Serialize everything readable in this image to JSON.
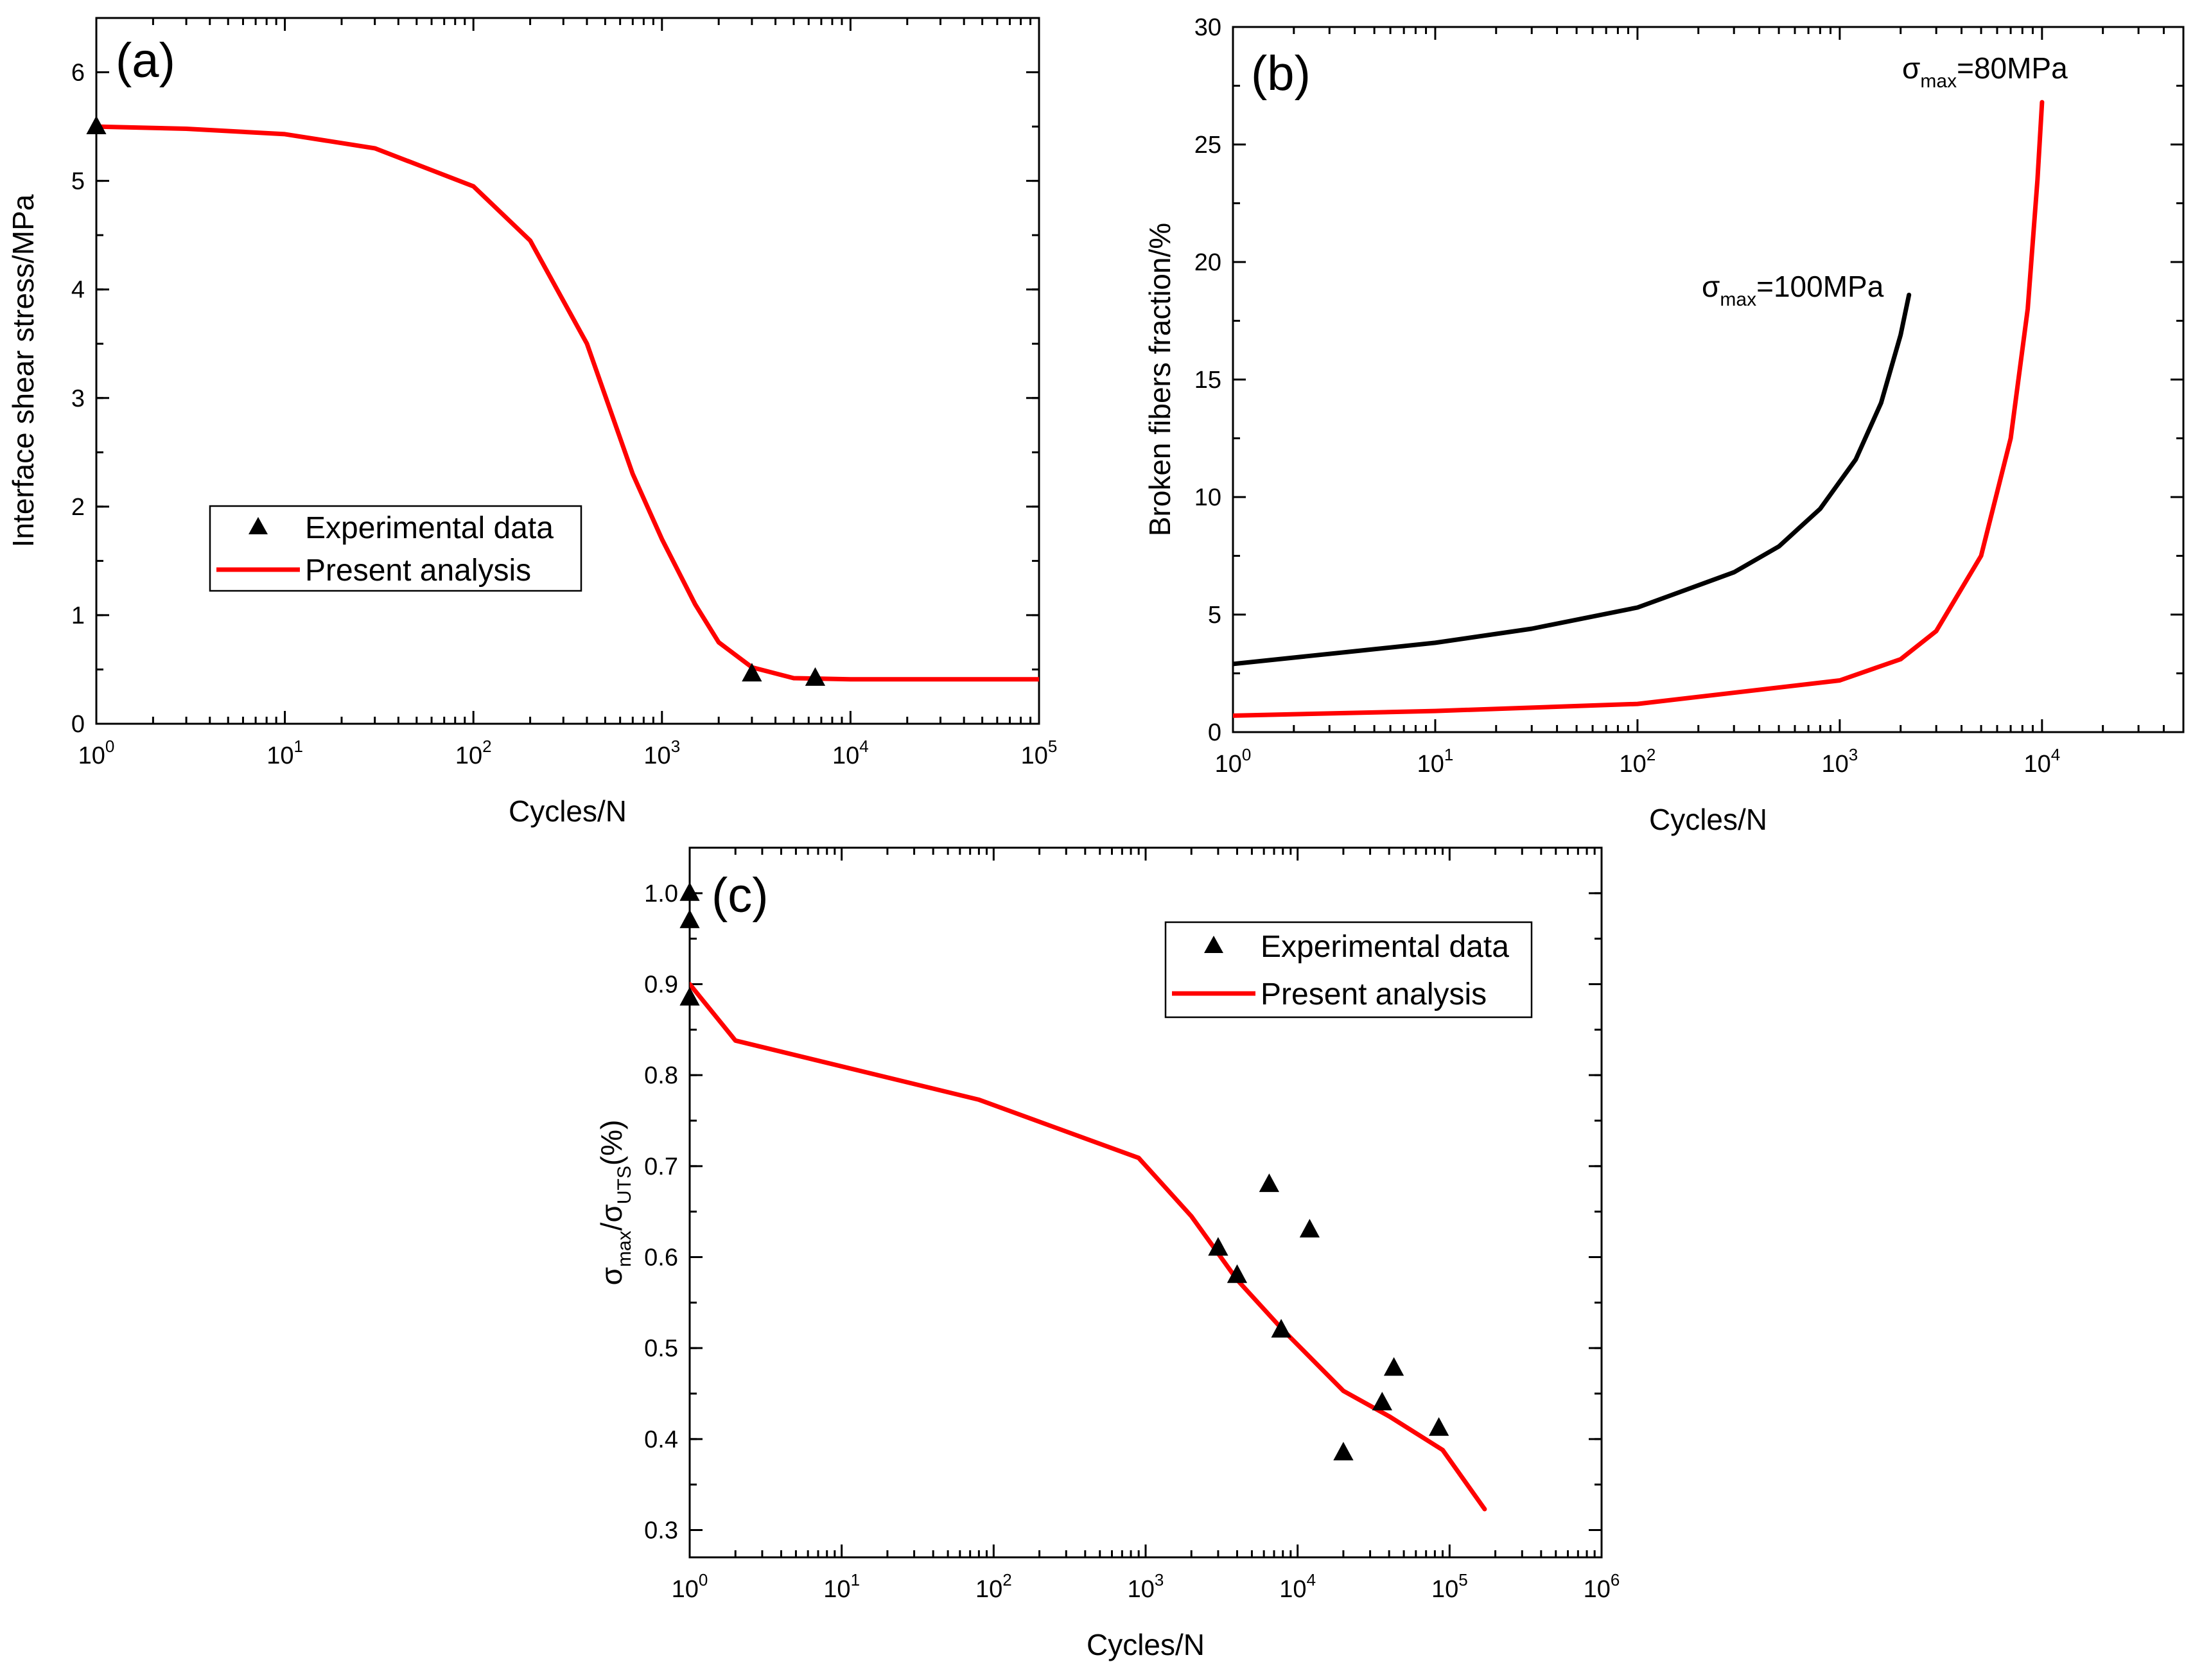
{
  "colors": {
    "model": "#ff0000",
    "black_series": "#000000",
    "axis": "#000000",
    "background": "#ffffff"
  },
  "chart_data": [
    {
      "id": "a",
      "type": "line",
      "panel_label": "(a)",
      "xlabel": "Cycles/N",
      "ylabel": "Interface shear stress/MPa",
      "xscale": "log",
      "xlim": [
        1,
        100000
      ],
      "ylim": [
        0,
        6.5
      ],
      "x_ticks": [
        {
          "base": "10",
          "exp": "0"
        },
        {
          "base": "10",
          "exp": "1"
        },
        {
          "base": "10",
          "exp": "2"
        },
        {
          "base": "10",
          "exp": "3"
        },
        {
          "base": "10",
          "exp": "4"
        },
        {
          "base": "10",
          "exp": "5"
        }
      ],
      "y_ticks": [
        "0",
        "1",
        "2",
        "3",
        "4",
        "5",
        "6"
      ],
      "legend": {
        "position": "center-left",
        "entries": [
          "Experimental data",
          "Present analysis"
        ]
      },
      "series": [
        {
          "name": "Experimental data",
          "kind": "scatter",
          "marker": "triangle",
          "color": "#000000",
          "x": [
            1,
            3000,
            6500
          ],
          "y": [
            5.5,
            0.46,
            0.42
          ]
        },
        {
          "name": "Present analysis",
          "kind": "line",
          "color": "#ff0000",
          "x": [
            1,
            3,
            10,
            30,
            100,
            200,
            400,
            700,
            1000,
            1500,
            2000,
            3000,
            5000,
            10000,
            100000
          ],
          "y": [
            5.5,
            5.48,
            5.43,
            5.3,
            4.95,
            4.45,
            3.5,
            2.3,
            1.7,
            1.1,
            0.75,
            0.52,
            0.42,
            0.41,
            0.41
          ]
        }
      ]
    },
    {
      "id": "b",
      "type": "line",
      "panel_label": "(b)",
      "xlabel": "Cycles/N",
      "ylabel": "Broken fibers fraction/%",
      "xscale": "log",
      "xlim": [
        1,
        50000
      ],
      "ylim": [
        0,
        30
      ],
      "x_ticks": [
        {
          "base": "10",
          "exp": "0"
        },
        {
          "base": "10",
          "exp": "1"
        },
        {
          "base": "10",
          "exp": "2"
        },
        {
          "base": "10",
          "exp": "3"
        },
        {
          "base": "10",
          "exp": "4"
        }
      ],
      "y_ticks": [
        "0",
        "5",
        "10",
        "15",
        "20",
        "25",
        "30"
      ],
      "series": [
        {
          "name": "σmax=100MPa",
          "kind": "line",
          "color": "#000000",
          "x": [
            1,
            10,
            30,
            100,
            300,
            500,
            800,
            1200,
            1600,
            2000,
            2200
          ],
          "y": [
            2.9,
            3.8,
            4.4,
            5.3,
            6.8,
            7.9,
            9.5,
            11.6,
            14.0,
            16.9,
            18.6
          ]
        },
        {
          "name": "σmax=80MPa",
          "kind": "line",
          "color": "#ff0000",
          "x": [
            1,
            10,
            100,
            1000,
            2000,
            3000,
            5000,
            7000,
            8500,
            9500,
            10000
          ],
          "y": [
            0.7,
            0.9,
            1.2,
            2.2,
            3.1,
            4.3,
            7.5,
            12.5,
            18.0,
            23.5,
            26.8
          ]
        }
      ],
      "annotations": [
        {
          "symbol": "σ",
          "sub": "max",
          "text": "=100MPa"
        },
        {
          "symbol": "σ",
          "sub": "max",
          "text": "=80MPa"
        }
      ]
    },
    {
      "id": "c",
      "type": "line",
      "panel_label": "(c)",
      "xlabel": "Cycles/N",
      "ylabel_parts": {
        "sym1": "σ",
        "sub1": "max",
        "slash": "/",
        "sym2": "σ",
        "sub2": "UTS",
        "unit": "(%)"
      },
      "xscale": "log",
      "xlim": [
        1,
        1000000
      ],
      "ylim": [
        0.27,
        1.05
      ],
      "x_ticks": [
        {
          "base": "10",
          "exp": "0"
        },
        {
          "base": "10",
          "exp": "1"
        },
        {
          "base": "10",
          "exp": "2"
        },
        {
          "base": "10",
          "exp": "3"
        },
        {
          "base": "10",
          "exp": "4"
        },
        {
          "base": "10",
          "exp": "5"
        },
        {
          "base": "10",
          "exp": "6"
        }
      ],
      "y_ticks": [
        "0.3",
        "0.4",
        "0.5",
        "0.6",
        "0.7",
        "0.8",
        "0.9",
        "1.0"
      ],
      "legend": {
        "position": "top-right",
        "entries": [
          "Experimental data",
          "Present analysis"
        ]
      },
      "series": [
        {
          "name": "Experimental data",
          "kind": "scatter",
          "marker": "triangle",
          "color": "#000000",
          "x": [
            1,
            1,
            1,
            3000,
            4000,
            6500,
            7800,
            12000,
            20000,
            36000,
            43000,
            85000
          ],
          "y": [
            1.0,
            0.97,
            0.885,
            0.61,
            0.58,
            0.68,
            0.52,
            0.63,
            0.385,
            0.44,
            0.478,
            0.412
          ]
        },
        {
          "name": "Present analysis",
          "kind": "line",
          "color": "#ff0000",
          "x": [
            1,
            2,
            80,
            900,
            2000,
            4000,
            8000,
            20000,
            40000,
            90000,
            170000
          ],
          "y": [
            0.9,
            0.838,
            0.773,
            0.709,
            0.645,
            0.575,
            0.52,
            0.453,
            0.425,
            0.388,
            0.323
          ]
        }
      ]
    }
  ]
}
